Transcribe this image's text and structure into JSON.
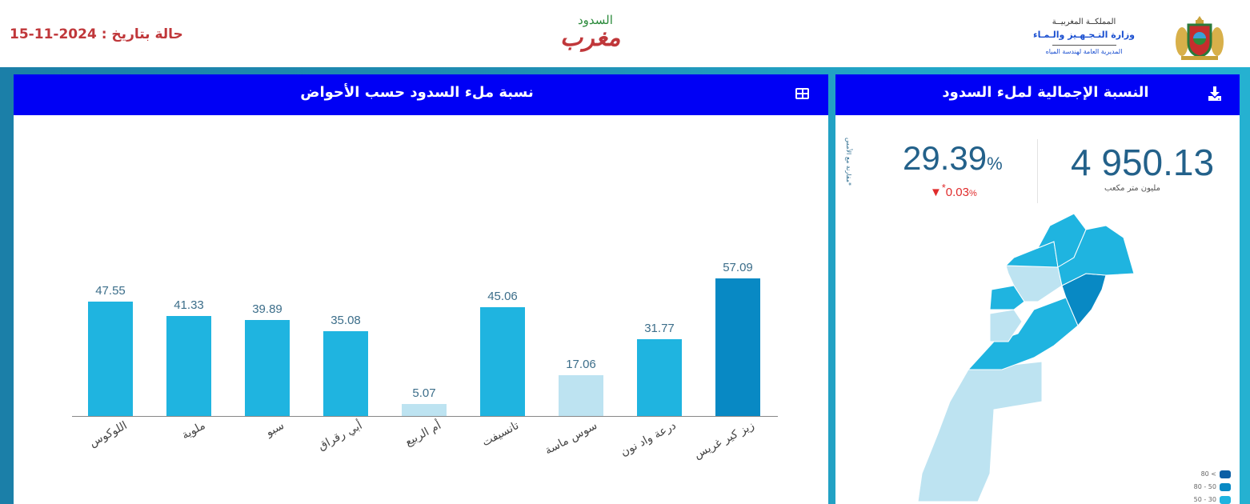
{
  "header": {
    "date_label": "حالة بتاريخ : 2024-11-15",
    "logo_main": "مغرب",
    "logo_sub": "السدود",
    "ministry_line1": "المملكــة المغربيــة",
    "ministry_line2": "وزارة التـجـهـيز والـمـاء",
    "ministry_line3": "المديرية العامة لهندسة المياه",
    "emblem": "royal-coat-of-arms"
  },
  "colors": {
    "panel_header": "#0000f5",
    "date_text": "#c0373a",
    "bar_30_50": "#1fb4e0",
    "bar_50_80": "#0889c4",
    "bar_80_plus": "#0b5fa5",
    "bar_below_30": "#bde3f1",
    "kpi_text": "#23618a",
    "delta_negative": "#e02b2b"
  },
  "chart_panel": {
    "title": "نسبة ملء السدود حسب الأحواض",
    "icon": "table-icon"
  },
  "total_panel": {
    "title": "النسبة الإجمالية لملء السدود",
    "icon": "download-icon",
    "comparison_note": "*مقارنة مع الأمس",
    "fill_rate": "29.39",
    "fill_rate_unit": "%",
    "delta": "0.03",
    "delta_prefix": "*",
    "delta_unit": "%",
    "delta_direction": "down",
    "volume": "4 950.13",
    "volume_unit": "مليون متر مكعب",
    "legend": [
      {
        "label": "80 <",
        "color": "#0b5fa5"
      },
      {
        "label": "80 - 50",
        "color": "#0889c4"
      },
      {
        "label": "50 - 30",
        "color": "#1fb4e0"
      }
    ]
  },
  "chart_data": {
    "type": "bar",
    "title": "نسبة ملء السدود حسب الأحواض",
    "xlabel": "",
    "ylabel": "",
    "ylim": [
      0,
      60
    ],
    "grid": false,
    "categories": [
      "اللوكوس",
      "ملوية",
      "سبو",
      "أبي رقراق",
      "أم الربيع",
      "تانسيفت",
      "سوس ماسة",
      "درعة واد نون",
      "زيز كير غريس"
    ],
    "values": [
      47.55,
      41.33,
      39.89,
      35.08,
      5.07,
      45.06,
      17.06,
      31.77,
      57.09
    ],
    "value_labels": [
      "47.55",
      "41.33",
      "39.89",
      "35.08",
      "5.07",
      "45.06",
      "17.06",
      "31.77",
      "57.09"
    ],
    "colors": [
      "#1fb4e0",
      "#1fb4e0",
      "#1fb4e0",
      "#1fb4e0",
      "#bde3f1",
      "#1fb4e0",
      "#bde3f1",
      "#1fb4e0",
      "#0889c4"
    ]
  }
}
